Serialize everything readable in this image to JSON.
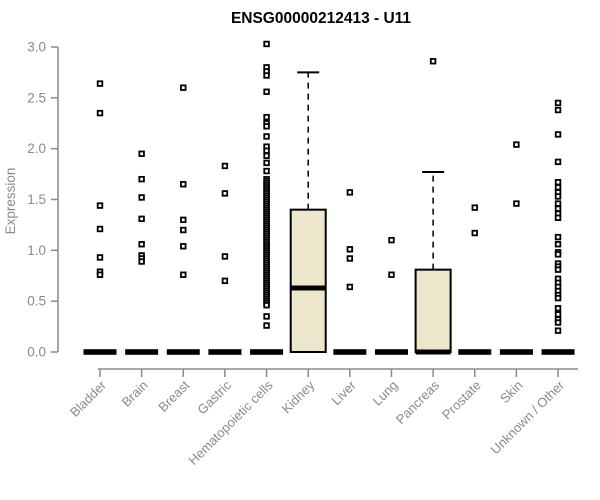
{
  "chart_data": {
    "type": "boxplot",
    "title": "ENSG00000212413 - U11",
    "ylabel": "Expression",
    "xlabel": "",
    "ylim": [
      0.0,
      3.0
    ],
    "yticks": [
      0.0,
      0.5,
      1.0,
      1.5,
      2.0,
      2.5,
      3.0
    ],
    "grid": false,
    "legend": "none",
    "categories": [
      "Bladder",
      "Brain",
      "Breast",
      "Gastric",
      "Hematopoietic cells",
      "Kidney",
      "Liver",
      "Lung",
      "Pancreas",
      "Prostate",
      "Skin",
      "Unknown / Other"
    ],
    "series": [
      {
        "category": "Bladder",
        "q1": 0,
        "median": 0,
        "q3": 0,
        "whisker_low": 0,
        "whisker_high": 0,
        "outliers": [
          2.64,
          2.35,
          1.44,
          1.21,
          0.93,
          0.79,
          0.76
        ]
      },
      {
        "category": "Brain",
        "q1": 0,
        "median": 0,
        "q3": 0,
        "whisker_low": 0,
        "whisker_high": 0,
        "outliers": [
          1.95,
          1.7,
          1.52,
          1.31,
          1.06,
          0.95,
          0.92,
          0.89
        ]
      },
      {
        "category": "Breast",
        "q1": 0,
        "median": 0,
        "q3": 0,
        "whisker_low": 0,
        "whisker_high": 0,
        "outliers": [
          2.6,
          1.65,
          1.3,
          1.2,
          1.04,
          0.76
        ]
      },
      {
        "category": "Gastric",
        "q1": 0,
        "median": 0,
        "q3": 0,
        "whisker_low": 0,
        "whisker_high": 0,
        "outliers": [
          1.83,
          1.56,
          0.94,
          0.7
        ]
      },
      {
        "category": "Hematopoietic cells",
        "q1": 0,
        "median": 0,
        "q3": 0,
        "whisker_low": 0,
        "whisker_high": 0,
        "outliers": [
          3.03,
          2.8,
          2.76,
          2.72,
          2.56,
          2.31,
          2.25,
          2.22,
          2.12,
          2.02,
          1.98,
          1.93,
          1.86,
          1.78,
          1.7,
          1.68,
          1.66,
          1.64,
          1.62,
          1.6,
          1.58,
          1.56,
          1.54,
          1.52,
          1.5,
          1.48,
          1.46,
          1.44,
          1.42,
          1.4,
          1.38,
          1.36,
          1.34,
          1.32,
          1.3,
          1.28,
          1.26,
          1.24,
          1.22,
          1.2,
          1.18,
          1.16,
          1.14,
          1.12,
          1.1,
          1.08,
          1.06,
          1.04,
          1.02,
          1.0,
          0.98,
          0.96,
          0.94,
          0.92,
          0.9,
          0.88,
          0.86,
          0.84,
          0.82,
          0.8,
          0.78,
          0.76,
          0.74,
          0.72,
          0.7,
          0.68,
          0.66,
          0.64,
          0.62,
          0.6,
          0.58,
          0.56,
          0.54,
          0.52,
          0.5,
          0.48,
          0.46,
          0.35,
          0.26
        ]
      },
      {
        "category": "Kidney",
        "q1": 0,
        "median": 0.63,
        "q3": 1.4,
        "whisker_low": 0,
        "whisker_high": 2.75,
        "outliers": []
      },
      {
        "category": "Liver",
        "q1": 0,
        "median": 0,
        "q3": 0,
        "whisker_low": 0,
        "whisker_high": 0,
        "outliers": [
          1.57,
          1.01,
          0.92,
          0.64
        ]
      },
      {
        "category": "Lung",
        "q1": 0,
        "median": 0,
        "q3": 0,
        "whisker_low": 0,
        "whisker_high": 0,
        "outliers": [
          1.1,
          0.76
        ]
      },
      {
        "category": "Pancreas",
        "q1": 0,
        "median": 0,
        "q3": 0.81,
        "whisker_low": 0,
        "whisker_high": 1.77,
        "outliers": [
          2.86
        ]
      },
      {
        "category": "Prostate",
        "q1": 0,
        "median": 0,
        "q3": 0,
        "whisker_low": 0,
        "whisker_high": 0,
        "outliers": [
          1.42,
          1.17
        ]
      },
      {
        "category": "Skin",
        "q1": 0,
        "median": 0,
        "q3": 0,
        "whisker_low": 0,
        "whisker_high": 0,
        "outliers": [
          2.04,
          1.46
        ]
      },
      {
        "category": "Unknown / Other",
        "q1": 0,
        "median": 0,
        "q3": 0,
        "whisker_low": 0,
        "whisker_high": 0,
        "outliers": [
          2.45,
          2.38,
          2.14,
          1.87,
          1.67,
          1.62,
          1.57,
          1.53,
          1.46,
          1.41,
          1.36,
          1.32,
          1.13,
          1.06,
          0.98,
          0.96,
          0.87,
          0.84,
          0.81,
          0.72,
          0.68,
          0.64,
          0.6,
          0.56,
          0.53,
          0.43,
          0.37,
          0.32,
          0.29,
          0.21
        ]
      }
    ],
    "style": {
      "box_fill": "#ece7cc",
      "box_stroke": "#000000",
      "median_color": "#000000",
      "whisker_color": "#000000",
      "point_color": "#000000",
      "axis_color": "#8a8a8a",
      "tick_label_color": "#8a8a8a",
      "title_color": "#000000",
      "background": "#ffffff"
    }
  }
}
